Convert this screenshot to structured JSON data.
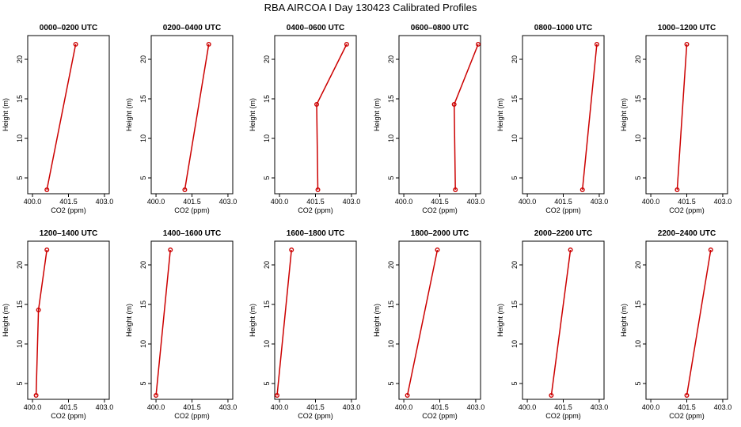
{
  "title": "RBA AIRCOA I  Day 130423  Calibrated Profiles",
  "chart_data": {
    "type": "scatter",
    "xlabel": "CO2 (ppm)",
    "ylabel": "Height (m)",
    "xlim": [
      399.8,
      403.2
    ],
    "ylim": [
      3.0,
      23.0
    ],
    "x_ticks": [
      400.0,
      401.5,
      403.0
    ],
    "x_tick_labels": [
      "400.0",
      "401.5",
      "403.0"
    ],
    "y_ticks": [
      5,
      10,
      15,
      20
    ],
    "y_tick_labels": [
      "5",
      "10",
      "15",
      "20"
    ],
    "heights_m": [
      3.5,
      14.3,
      21.9
    ],
    "line_color": "#cc0000",
    "panels": [
      {
        "title": "0000–0200 UTC",
        "points": [
          {
            "x": 400.6,
            "y": 3.5
          },
          {
            "x": 401.8,
            "y": 21.9
          }
        ]
      },
      {
        "title": "0200–0400 UTC",
        "points": [
          {
            "x": 401.2,
            "y": 3.5
          },
          {
            "x": 402.2,
            "y": 21.9
          }
        ]
      },
      {
        "title": "0400–0600 UTC",
        "points": [
          {
            "x": 401.6,
            "y": 3.5
          },
          {
            "x": 401.55,
            "y": 14.3
          },
          {
            "x": 402.8,
            "y": 21.9
          }
        ]
      },
      {
        "title": "0600–0800 UTC",
        "points": [
          {
            "x": 402.15,
            "y": 3.5
          },
          {
            "x": 402.1,
            "y": 14.3
          },
          {
            "x": 403.1,
            "y": 21.9
          }
        ]
      },
      {
        "title": "0800–1000 UTC",
        "points": [
          {
            "x": 402.3,
            "y": 3.5
          },
          {
            "x": 402.9,
            "y": 21.9
          }
        ]
      },
      {
        "title": "1000–1200 UTC",
        "points": [
          {
            "x": 401.1,
            "y": 3.5
          },
          {
            "x": 401.5,
            "y": 21.9
          }
        ]
      },
      {
        "title": "1200–1400 UTC",
        "points": [
          {
            "x": 400.15,
            "y": 3.5
          },
          {
            "x": 400.25,
            "y": 14.3
          },
          {
            "x": 400.6,
            "y": 21.9
          }
        ]
      },
      {
        "title": "1400–1600 UTC",
        "points": [
          {
            "x": 400.0,
            "y": 3.5
          },
          {
            "x": 400.6,
            "y": 21.9
          }
        ]
      },
      {
        "title": "1600–1800 UTC",
        "points": [
          {
            "x": 399.9,
            "y": 3.5
          },
          {
            "x": 400.5,
            "y": 21.9
          }
        ]
      },
      {
        "title": "1800–2000 UTC",
        "points": [
          {
            "x": 400.15,
            "y": 3.5
          },
          {
            "x": 401.4,
            "y": 21.9
          }
        ]
      },
      {
        "title": "2000–2200 UTC",
        "points": [
          {
            "x": 401.0,
            "y": 3.5
          },
          {
            "x": 401.8,
            "y": 21.9
          }
        ]
      },
      {
        "title": "2200–2400 UTC",
        "points": [
          {
            "x": 401.5,
            "y": 3.5
          },
          {
            "x": 402.5,
            "y": 21.9
          }
        ]
      }
    ]
  }
}
